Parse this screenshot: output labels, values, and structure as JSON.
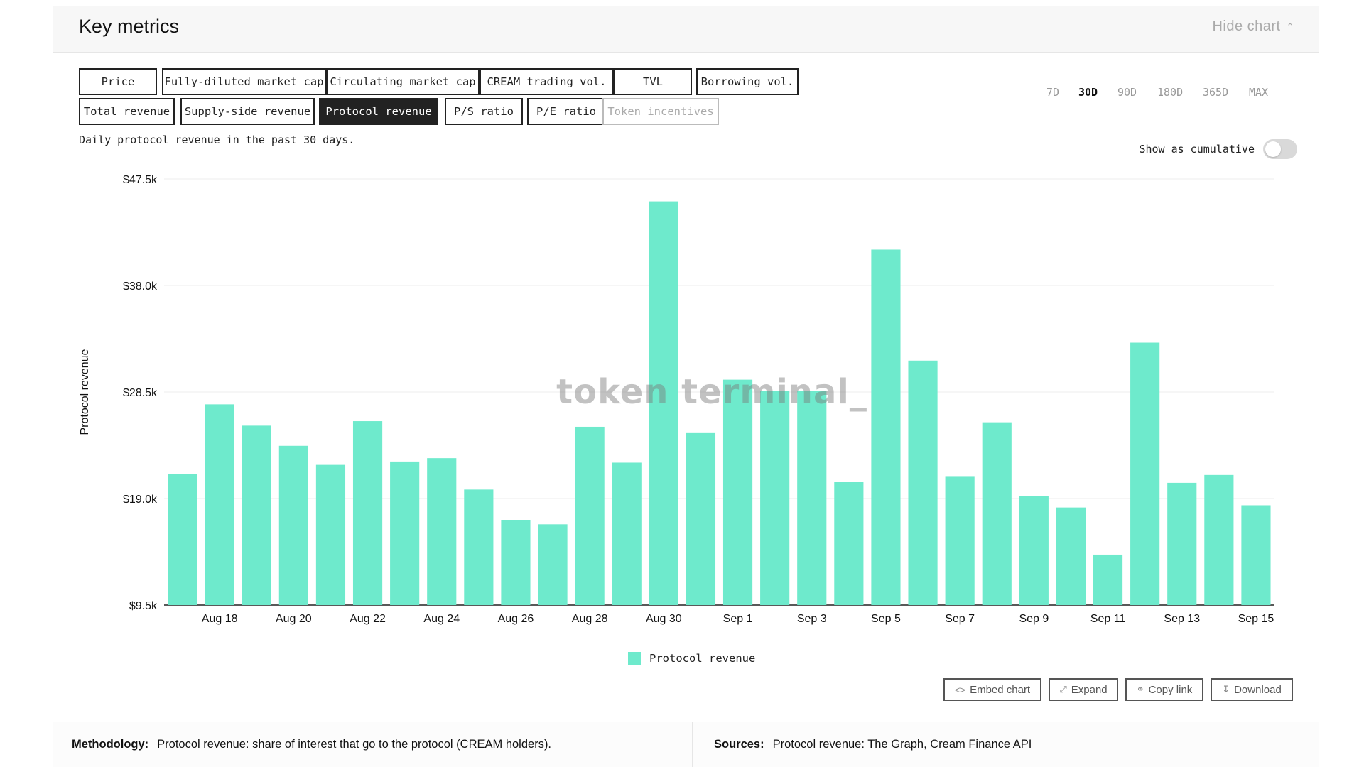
{
  "header": {
    "title": "Key metrics",
    "hide_chart_label": "Hide chart"
  },
  "metric_tabs": [
    {
      "label": "Price",
      "state": "normal"
    },
    {
      "label": "Fully-diluted market cap",
      "state": "normal"
    },
    {
      "label": "Circulating market cap",
      "state": "normal"
    },
    {
      "label": "CREAM trading vol.",
      "state": "normal"
    },
    {
      "label": "TVL",
      "state": "normal"
    },
    {
      "label": "Borrowing vol.",
      "state": "normal"
    },
    {
      "label": "Total revenue",
      "state": "normal"
    },
    {
      "label": "Supply-side revenue",
      "state": "normal"
    },
    {
      "label": "Protocol revenue",
      "state": "active"
    },
    {
      "label": "P/S ratio",
      "state": "normal"
    },
    {
      "label": "P/E ratio",
      "state": "normal"
    },
    {
      "label": "Token incentives",
      "state": "disabled"
    }
  ],
  "time_ranges": [
    {
      "label": "7D",
      "active": false
    },
    {
      "label": "30D",
      "active": true
    },
    {
      "label": "90D",
      "active": false
    },
    {
      "label": "180D",
      "active": false
    },
    {
      "label": "365D",
      "active": false
    },
    {
      "label": "MAX",
      "active": false
    }
  ],
  "subtitle": "Daily protocol revenue in the past 30 days.",
  "cumulative": {
    "label": "Show as cumulative",
    "on": false
  },
  "watermark": "token terminal_",
  "colors": {
    "bar": "#6eeacc",
    "active_tab": "#222222"
  },
  "chart_data": {
    "type": "bar",
    "x": [
      "Aug 17",
      "Aug 18",
      "Aug 19",
      "Aug 20",
      "Aug 21",
      "Aug 22",
      "Aug 23",
      "Aug 24",
      "Aug 25",
      "Aug 26",
      "Aug 27",
      "Aug 28",
      "Aug 29",
      "Aug 30",
      "Aug 31",
      "Sep 1",
      "Sep 2",
      "Sep 3",
      "Sep 4",
      "Sep 5",
      "Sep 6",
      "Sep 7",
      "Sep 8",
      "Sep 9",
      "Sep 10",
      "Sep 11",
      "Sep 12",
      "Sep 13",
      "Sep 14",
      "Sep 15"
    ],
    "tick_labels": [
      "Aug 18",
      "Aug 20",
      "Aug 22",
      "Aug 24",
      "Aug 26",
      "Aug 28",
      "Aug 30",
      "Sep 1",
      "Sep 3",
      "Sep 5",
      "Sep 7",
      "Sep 9",
      "Sep 11",
      "Sep 13",
      "Sep 15"
    ],
    "series": [
      {
        "name": "Protocol revenue",
        "values": [
          21200,
          27400,
          25500,
          23700,
          22000,
          25900,
          22300,
          22600,
          19800,
          17100,
          16700,
          25400,
          22200,
          45500,
          24900,
          29600,
          28600,
          28600,
          20500,
          41200,
          31300,
          21000,
          25800,
          19200,
          18200,
          14000,
          32900,
          20400,
          21100,
          18400
        ]
      }
    ],
    "ylabel": "Protocol revenue",
    "y_ticks": [
      "$9.5k",
      "$19.0k",
      "$28.5k",
      "$38.0k",
      "$47.5k"
    ],
    "ylim": [
      9500,
      47500
    ],
    "grid": true,
    "legend": "bottom-center"
  },
  "actions": [
    {
      "label": "Embed chart",
      "icon": "code-icon"
    },
    {
      "label": "Expand",
      "icon": "expand-icon"
    },
    {
      "label": "Copy link",
      "icon": "link-icon"
    },
    {
      "label": "Download",
      "icon": "download-icon"
    }
  ],
  "footer": {
    "methodology_label": "Methodology:",
    "methodology_text": "Protocol revenue: share of interest that go to the protocol (CREAM holders).",
    "sources_label": "Sources:",
    "sources_text": "Protocol revenue: The Graph, Cream Finance API"
  }
}
